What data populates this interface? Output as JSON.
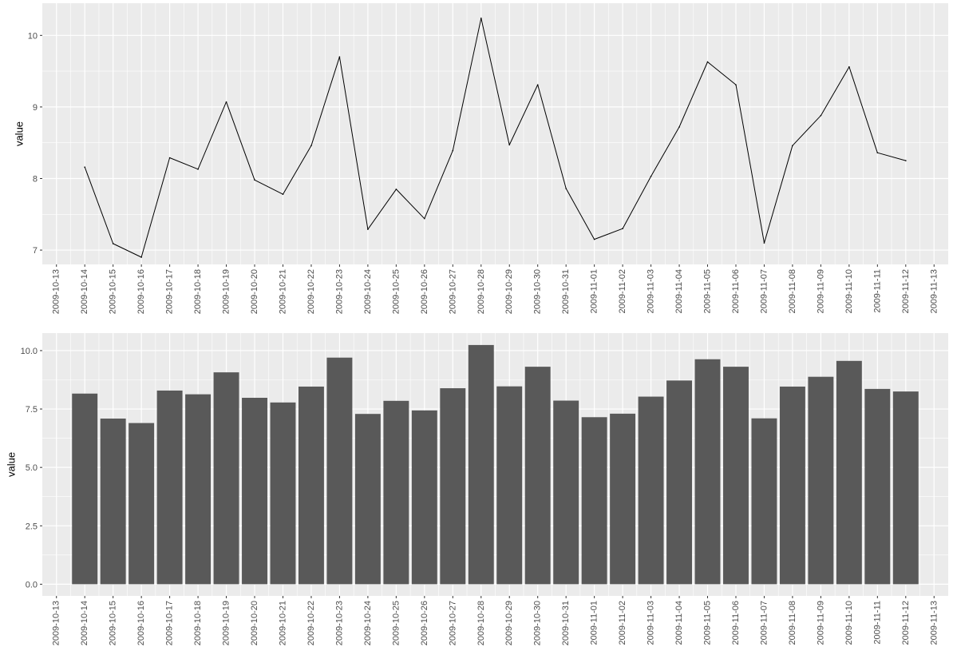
{
  "chart_data": [
    {
      "type": "line",
      "ylabel": "value",
      "x_ticks": [
        "2009-10-13",
        "2009-10-14",
        "2009-10-15",
        "2009-10-16",
        "2009-10-17",
        "2009-10-18",
        "2009-10-19",
        "2009-10-20",
        "2009-10-21",
        "2009-10-22",
        "2009-10-23",
        "2009-10-24",
        "2009-10-25",
        "2009-10-26",
        "2009-10-27",
        "2009-10-28",
        "2009-10-29",
        "2009-10-30",
        "2009-10-31",
        "2009-11-01",
        "2009-11-02",
        "2009-11-03",
        "2009-11-04",
        "2009-11-05",
        "2009-11-06",
        "2009-11-07",
        "2009-11-08",
        "2009-11-09",
        "2009-11-10",
        "2009-11-11",
        "2009-11-12",
        "2009-11-13"
      ],
      "x": [
        "2009-10-14",
        "2009-10-15",
        "2009-10-16",
        "2009-10-17",
        "2009-10-18",
        "2009-10-19",
        "2009-10-20",
        "2009-10-21",
        "2009-10-22",
        "2009-10-23",
        "2009-10-24",
        "2009-10-25",
        "2009-10-26",
        "2009-10-27",
        "2009-10-28",
        "2009-10-29",
        "2009-10-30",
        "2009-10-31",
        "2009-11-01",
        "2009-11-02",
        "2009-11-03",
        "2009-11-04",
        "2009-11-05",
        "2009-11-06",
        "2009-11-07",
        "2009-11-08",
        "2009-11-09",
        "2009-11-10",
        "2009-11-11",
        "2009-11-12"
      ],
      "values": [
        8.16,
        7.09,
        6.9,
        8.29,
        8.13,
        9.07,
        7.98,
        7.78,
        8.46,
        9.7,
        7.29,
        7.85,
        7.44,
        8.39,
        10.24,
        8.47,
        9.31,
        7.86,
        7.15,
        7.3,
        8.03,
        8.72,
        9.63,
        9.31,
        7.1,
        8.46,
        8.88,
        9.56,
        8.36,
        8.25
      ],
      "y_ticks": [
        7,
        8,
        9,
        10
      ],
      "y_tick_labels": [
        "7",
        "8",
        "9",
        "10"
      ],
      "ylim": [
        6.8,
        10.45
      ],
      "grid": true,
      "line_color": "#000000"
    },
    {
      "type": "bar",
      "ylabel": "value",
      "x_ticks": [
        "2009-10-13",
        "2009-10-14",
        "2009-10-15",
        "2009-10-16",
        "2009-10-17",
        "2009-10-18",
        "2009-10-19",
        "2009-10-20",
        "2009-10-21",
        "2009-10-22",
        "2009-10-23",
        "2009-10-24",
        "2009-10-25",
        "2009-10-26",
        "2009-10-27",
        "2009-10-28",
        "2009-10-29",
        "2009-10-30",
        "2009-10-31",
        "2009-11-01",
        "2009-11-02",
        "2009-11-03",
        "2009-11-04",
        "2009-11-05",
        "2009-11-06",
        "2009-11-07",
        "2009-11-08",
        "2009-11-09",
        "2009-11-10",
        "2009-11-11",
        "2009-11-12",
        "2009-11-13"
      ],
      "x": [
        "2009-10-14",
        "2009-10-15",
        "2009-10-16",
        "2009-10-17",
        "2009-10-18",
        "2009-10-19",
        "2009-10-20",
        "2009-10-21",
        "2009-10-22",
        "2009-10-23",
        "2009-10-24",
        "2009-10-25",
        "2009-10-26",
        "2009-10-27",
        "2009-10-28",
        "2009-10-29",
        "2009-10-30",
        "2009-10-31",
        "2009-11-01",
        "2009-11-02",
        "2009-11-03",
        "2009-11-04",
        "2009-11-05",
        "2009-11-06",
        "2009-11-07",
        "2009-11-08",
        "2009-11-09",
        "2009-11-10",
        "2009-11-11",
        "2009-11-12"
      ],
      "values": [
        8.16,
        7.09,
        6.9,
        8.29,
        8.13,
        9.07,
        7.98,
        7.78,
        8.46,
        9.7,
        7.29,
        7.85,
        7.44,
        8.39,
        10.24,
        8.47,
        9.31,
        7.86,
        7.15,
        7.3,
        8.03,
        8.72,
        9.63,
        9.31,
        7.1,
        8.46,
        8.88,
        9.56,
        8.36,
        8.25
      ],
      "y_ticks": [
        0,
        2.5,
        5,
        7.5,
        10
      ],
      "y_tick_labels": [
        "0.0",
        "2.5",
        "5.0",
        "7.5",
        "10.0"
      ],
      "ylim": [
        -0.5,
        10.75
      ],
      "grid": true,
      "bar_color": "#595959"
    }
  ],
  "style": {
    "panel_bg": "#ebebeb",
    "grid_color": "#ffffff",
    "tick_color": "#333333",
    "text_color": "#4d4d4d"
  }
}
